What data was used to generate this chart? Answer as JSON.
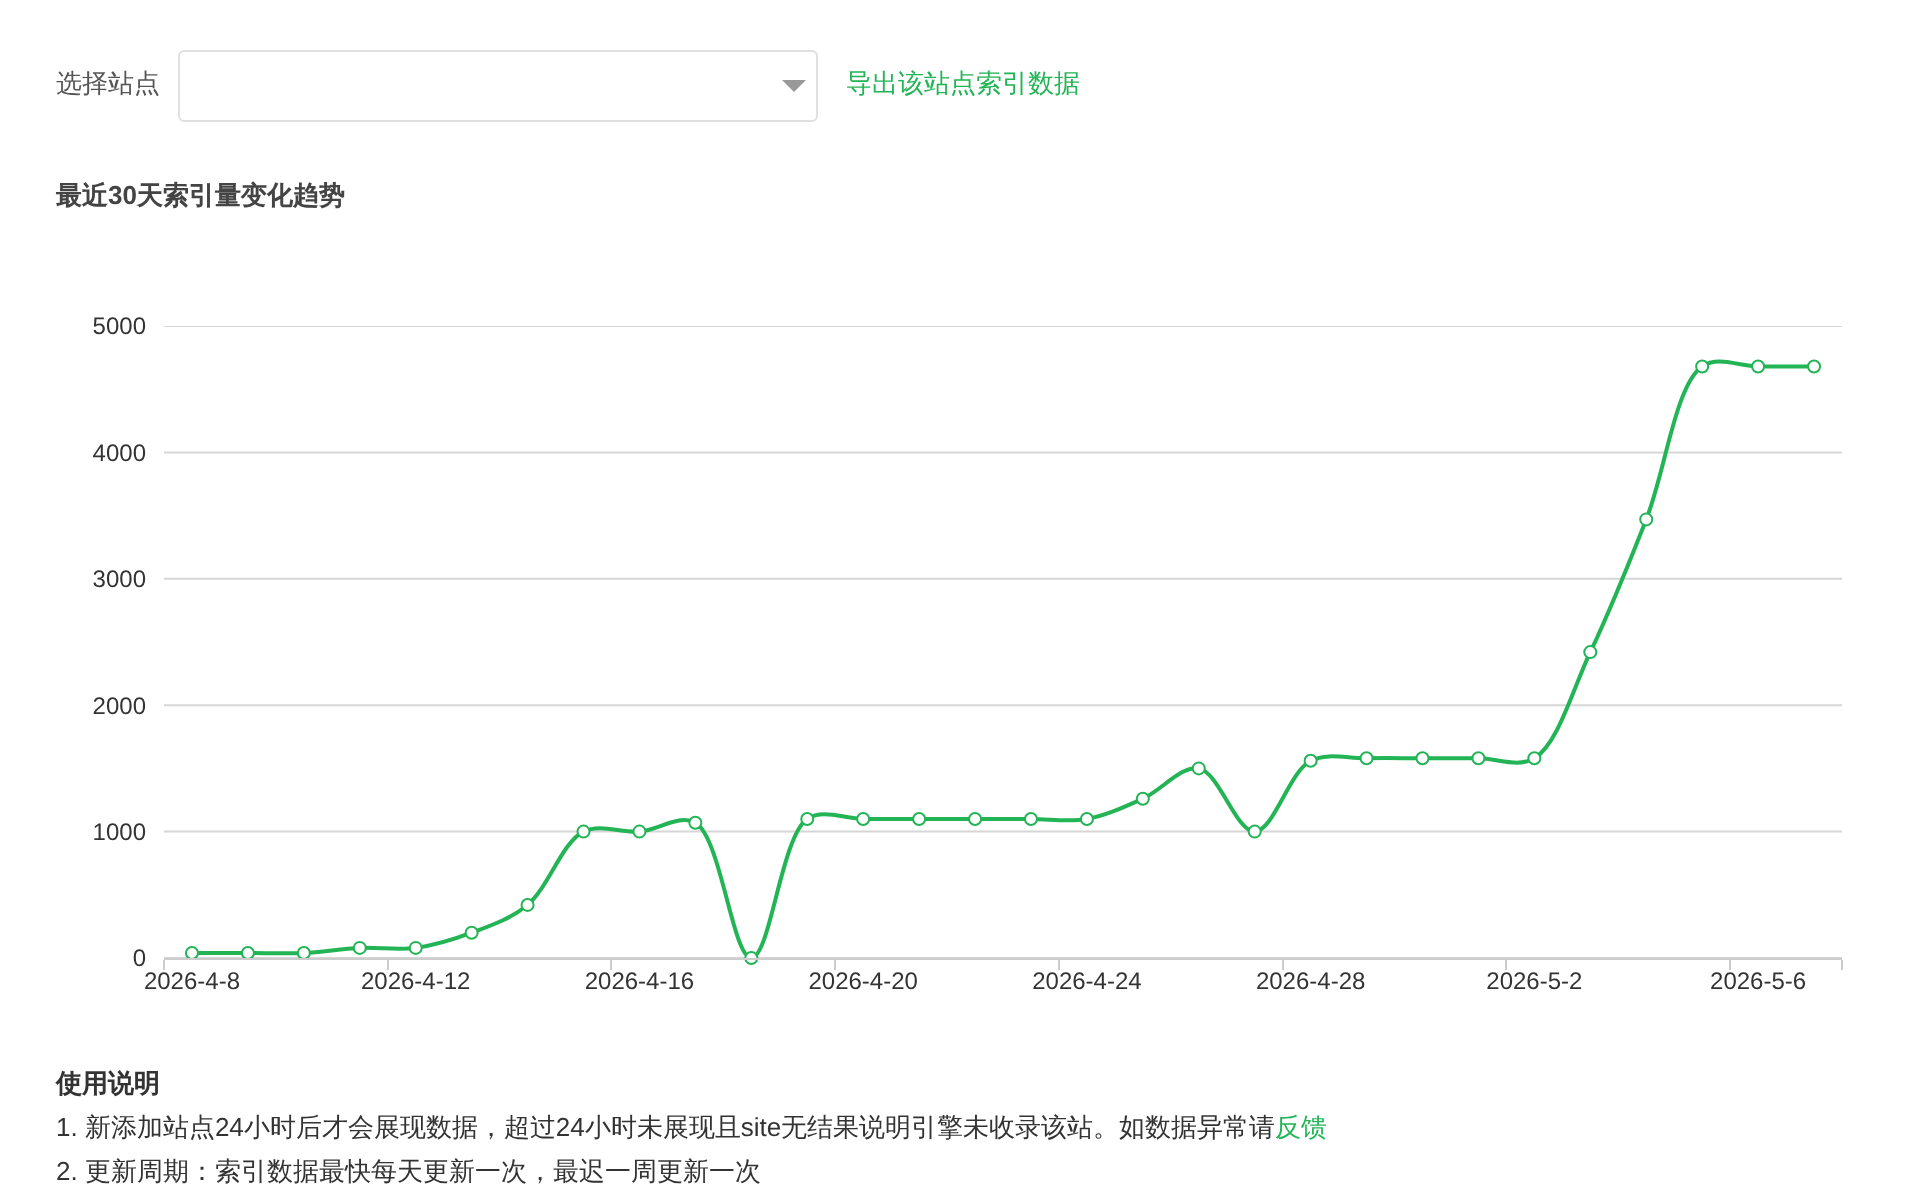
{
  "chart_data": {
    "type": "line",
    "title": "最近30天索引量变化趋势",
    "categories": [
      "2026-4-8",
      null,
      null,
      null,
      "2026-4-12",
      null,
      null,
      null,
      "2026-4-16",
      null,
      null,
      null,
      "2026-4-20",
      null,
      null,
      null,
      "2026-4-24",
      null,
      null,
      null,
      "2026-4-28",
      null,
      null,
      null,
      "2026-5-2",
      null,
      null,
      null,
      "2026-5-6",
      null
    ],
    "values": [
      40,
      40,
      40,
      80,
      80,
      200,
      420,
      1000,
      1000,
      1070,
      0,
      1100,
      1100,
      1100,
      1100,
      1100,
      1100,
      1260,
      1500,
      1000,
      1560,
      1580,
      1580,
      1580,
      1580,
      2420,
      3470,
      4680,
      4680,
      4680
    ],
    "color": "#22b455",
    "ylim": [
      0,
      5000
    ],
    "yticks": [
      0,
      1000,
      2000,
      3000,
      4000,
      5000
    ],
    "grid": "y",
    "legend": false,
    "marker": "circle",
    "line_style": "solid",
    "annotations": [
      "选择站点",
      "导出该站点索引数据",
      "使用说明",
      "1. 新添加站点24小时后才会展现数据，超过24小时未展现且site无结果说明引擎未收录该站。如数据异常请",
      "反馈",
      "2. 更新周期：索引数据最快每天更新一次，最迟一周更新一次"
    ]
  }
}
